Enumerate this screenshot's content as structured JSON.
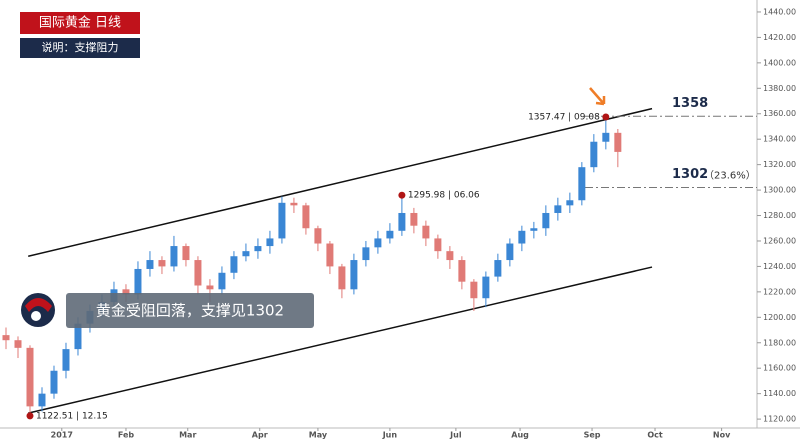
{
  "chart_data": {
    "type": "candlestick",
    "title": "国际黄金 日线",
    "subtitle": "说明：支撑阻力",
    "caption": "黄金受阻回落，支撑见1302",
    "x": [
      1,
      3,
      5,
      7,
      9,
      11,
      13,
      15,
      17,
      19,
      21,
      23,
      25,
      27,
      29,
      31,
      33,
      35,
      37,
      39,
      41,
      43,
      45,
      47,
      49,
      51,
      53,
      55,
      57,
      59,
      61,
      63,
      65,
      67,
      69,
      71,
      73,
      75,
      77,
      79,
      81,
      83,
      85,
      87,
      89,
      91,
      93,
      95,
      97,
      99,
      101,
      103
    ],
    "open": [
      1186,
      1182,
      1176,
      1130,
      1140,
      1158,
      1175,
      1195,
      1205,
      1212,
      1222,
      1218,
      1238,
      1245,
      1240,
      1256,
      1245,
      1225,
      1222,
      1235,
      1248,
      1252,
      1256,
      1262,
      1290,
      1288,
      1270,
      1258,
      1240,
      1222,
      1245,
      1255,
      1262,
      1268,
      1282,
      1272,
      1262,
      1252,
      1245,
      1228,
      1215,
      1232,
      1245,
      1258,
      1268,
      1270,
      1282,
      1288,
      1292,
      1318,
      1338,
      1345
    ],
    "high": [
      1192,
      1185,
      1178,
      1145,
      1162,
      1180,
      1200,
      1210,
      1218,
      1228,
      1226,
      1244,
      1252,
      1248,
      1264,
      1258,
      1248,
      1230,
      1240,
      1252,
      1258,
      1262,
      1268,
      1295,
      1294,
      1290,
      1272,
      1260,
      1242,
      1250,
      1260,
      1268,
      1274,
      1295.98,
      1286,
      1276,
      1265,
      1256,
      1248,
      1230,
      1236,
      1250,
      1262,
      1272,
      1275,
      1288,
      1294,
      1298,
      1322,
      1344,
      1357.47,
      1348
    ],
    "low": [
      1175,
      1168,
      1122.51,
      1126,
      1136,
      1152,
      1170,
      1188,
      1200,
      1208,
      1212,
      1214,
      1232,
      1234,
      1236,
      1240,
      1218,
      1212,
      1218,
      1230,
      1244,
      1246,
      1250,
      1258,
      1282,
      1265,
      1252,
      1234,
      1215,
      1218,
      1240,
      1250,
      1258,
      1264,
      1266,
      1256,
      1246,
      1238,
      1222,
      1205,
      1208,
      1228,
      1240,
      1252,
      1262,
      1264,
      1276,
      1282,
      1288,
      1314,
      1332,
      1318
    ],
    "close": [
      1182,
      1176,
      1130,
      1140,
      1158,
      1175,
      1195,
      1205,
      1212,
      1222,
      1218,
      1238,
      1245,
      1240,
      1256,
      1245,
      1225,
      1222,
      1235,
      1248,
      1252,
      1256,
      1262,
      1290,
      1288,
      1270,
      1258,
      1240,
      1222,
      1245,
      1255,
      1262,
      1268,
      1282,
      1272,
      1262,
      1252,
      1245,
      1228,
      1215,
      1232,
      1245,
      1258,
      1268,
      1270,
      1282,
      1288,
      1292,
      1318,
      1338,
      1345,
      1330
    ],
    "up_color": "#3a86d4",
    "down_color": "#e07a76",
    "xlim": [
      0,
      126.2
    ],
    "ylim": [
      1113,
      1449.4
    ],
    "xticks": [
      {
        "value": 10.3,
        "label": "2017"
      },
      {
        "value": 21,
        "label": "Feb"
      },
      {
        "value": 31.3,
        "label": "Mar"
      },
      {
        "value": 43.3,
        "label": "Apr"
      },
      {
        "value": 53,
        "label": "May"
      },
      {
        "value": 65,
        "label": "Jun"
      },
      {
        "value": 76,
        "label": "Jul"
      },
      {
        "value": 86.7,
        "label": "Aug"
      },
      {
        "value": 98.7,
        "label": "Sep"
      },
      {
        "value": 109.2,
        "label": "Oct"
      },
      {
        "value": 120.3,
        "label": "Nov"
      }
    ],
    "yticks": [
      {
        "value": 1120,
        "label": "1120.00"
      },
      {
        "value": 1140,
        "label": "1140.00"
      },
      {
        "value": 1160,
        "label": "1160.00"
      },
      {
        "value": 1180,
        "label": "1180.00"
      },
      {
        "value": 1200,
        "label": "1200.00"
      },
      {
        "value": 1220,
        "label": "1220.00"
      },
      {
        "value": 1240,
        "label": "1240.00"
      },
      {
        "value": 1260,
        "label": "1260.00"
      },
      {
        "value": 1280,
        "label": "1280.00"
      },
      {
        "value": 1300,
        "label": "1300.00"
      },
      {
        "value": 1320,
        "label": "1320.00"
      },
      {
        "value": 1340,
        "label": "1340.00"
      },
      {
        "value": 1360,
        "label": "1360.00"
      },
      {
        "value": 1380,
        "label": "1380.00"
      },
      {
        "value": 1400,
        "label": "1400.00"
      },
      {
        "value": 1420,
        "label": "1420.00"
      },
      {
        "value": 1440,
        "label": "1440.00"
      }
    ],
    "annotations": [
      {
        "x": 5,
        "value": 1122.51,
        "label": "1122.51 | 12.15"
      },
      {
        "x": 67,
        "value": 1295.98,
        "label": "1295.98 | 06.06"
      },
      {
        "x": 101,
        "value": 1357.47,
        "label": "1357.47 | 09.08"
      }
    ],
    "levels": [
      {
        "value": 1358,
        "label": "1358"
      },
      {
        "value": 1302,
        "label": "1302",
        "note": "（23.6%）"
      }
    ],
    "trendlines": [
      {
        "x": [
          4.7,
          108.7
        ],
        "values": [
          1248,
          1364
        ]
      },
      {
        "x": [
          4.7,
          108.7
        ],
        "values": [
          1124.7,
          1239.5
        ]
      }
    ]
  }
}
